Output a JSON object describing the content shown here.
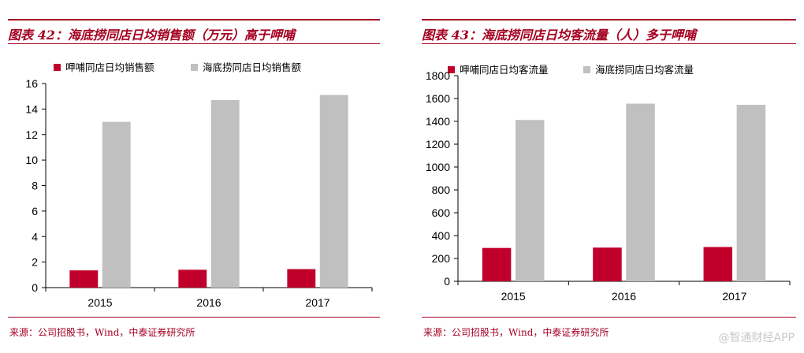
{
  "colors": {
    "accent": "#a50021",
    "series_red": "#c0002a",
    "series_gray": "#c0c0c0"
  },
  "left_panel": {
    "title": "图表 42：海底捞同店日均销售额（万元）高于呷哺",
    "source": "来源：公司招股书，Wind，中泰证券研究所"
  },
  "right_panel": {
    "title": "图表 43：海底捞同店日均客流量（人）多于呷哺",
    "source": "来源：公司招股书，Wind，中泰证券研究所"
  },
  "watermark": "@智通财经APP",
  "chart_data": [
    {
      "type": "bar",
      "title": "图表 42：海底捞同店日均销售额（万元）高于呷哺",
      "categories": [
        "2015",
        "2016",
        "2017"
      ],
      "series": [
        {
          "name": "呷哺同店日均销售额",
          "values": [
            1.35,
            1.4,
            1.45
          ]
        },
        {
          "name": "海底捞同店日均销售额",
          "values": [
            13.0,
            14.7,
            15.1
          ]
        }
      ],
      "ylim": [
        0,
        16
      ],
      "yticks": [
        0,
        2,
        4,
        6,
        8,
        10,
        12,
        14,
        16
      ],
      "legend": "top-left",
      "grid": false
    },
    {
      "type": "bar",
      "title": "图表 43：海底捞同店日均客流量（人）多于呷哺",
      "categories": [
        "2015",
        "2016",
        "2017"
      ],
      "series": [
        {
          "name": "呷哺同店日均客流量",
          "values": [
            292,
            295,
            300
          ]
        },
        {
          "name": "海底捞同店日均客流量",
          "values": [
            1412,
            1555,
            1545
          ]
        }
      ],
      "ylim": [
        0,
        1800
      ],
      "yticks": [
        0,
        200,
        400,
        600,
        800,
        1000,
        1200,
        1400,
        1600,
        1800
      ],
      "legend": "top-left",
      "grid": false
    }
  ]
}
